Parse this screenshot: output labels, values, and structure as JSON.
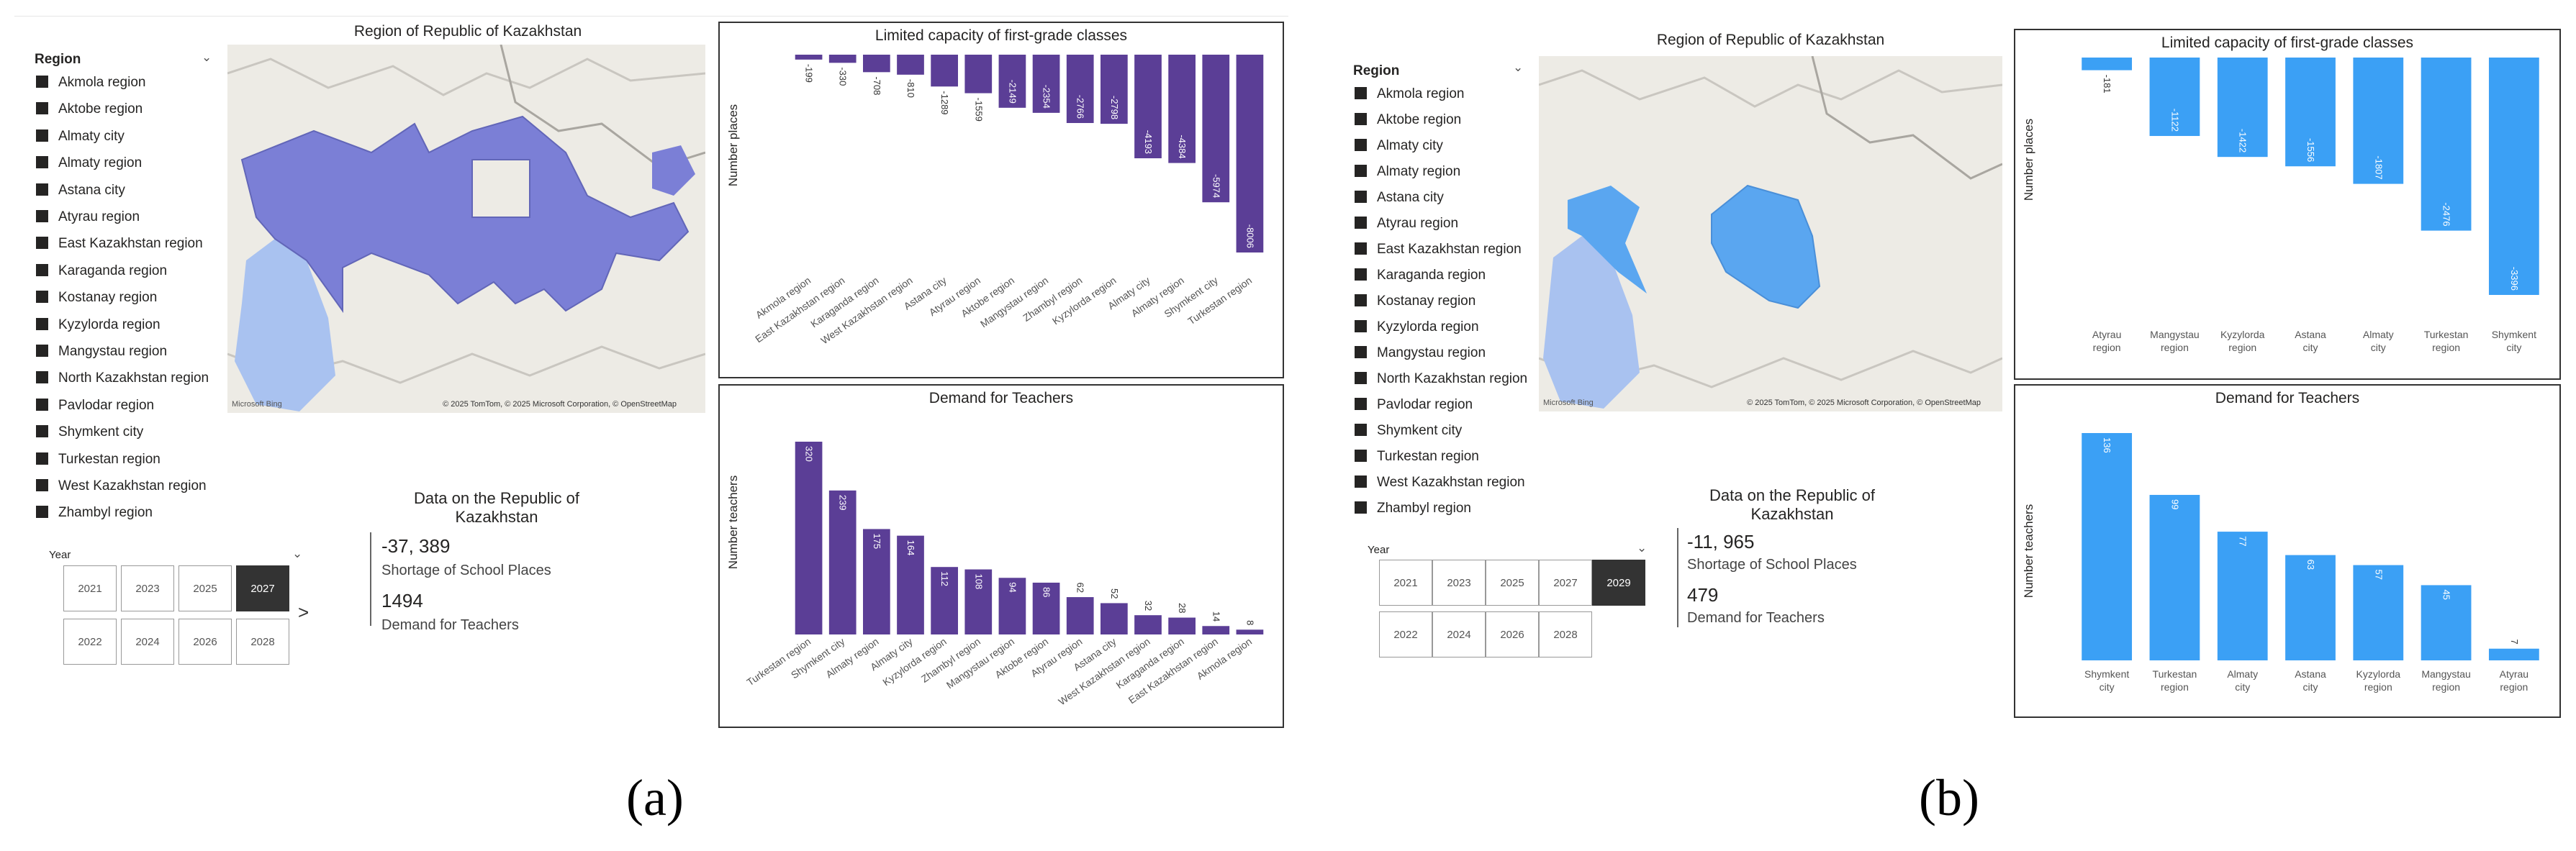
{
  "panels": [
    {
      "id": "a",
      "map_title": "Region of Republic of Kazakhstan",
      "map_credit": "© 2025 TomTom, © 2025 Microsoft Corporation, © OpenStreetMap",
      "map_logo": "Microsoft Bing",
      "legend_title": "Region",
      "legend_items": [
        "Akmola region",
        "Aktobe region",
        "Almaty city",
        "Almaty region",
        "Astana city",
        "Atyrau region",
        "East Kazakhstan region",
        "Karaganda region",
        "Kostanay region",
        "Kyzylorda region",
        "Mangystau region",
        "North Kazakhstan region",
        "Pavlodar region",
        "Shymkent city",
        "Turkestan region",
        "West Kazakhstan region",
        "Zhambyl region"
      ],
      "kpi_title": "Data on the Republic of Kazakhstan",
      "kpi_places_value": "-37, 389",
      "kpi_places_label": "Shortage of School Places",
      "kpi_teachers_value": "1494",
      "kpi_teachers_label": "Demand for Teachers",
      "year_label": "Year",
      "years": [
        "2021",
        "2023",
        "2025",
        "2027",
        "2022",
        "2024",
        "2026",
        "2028"
      ],
      "selected_year": "2027",
      "next_arrow": ">",
      "subfig_label": "(a)",
      "colors": {
        "bar": "#5b3e96",
        "map_fill": "#7b7fd6",
        "map_light": "#a9c2f0"
      },
      "chart_data": [
        {
          "type": "bar",
          "title": "Limited capacity of first-grade classes",
          "ylabel": "Number places",
          "xlabel": "",
          "categories": [
            "Akmola region",
            "East Kazakhstan region",
            "Karaganda region",
            "West Kazakhstan region",
            "Astana city",
            "Atyrau region",
            "Aktobe region",
            "Mangystau region",
            "Zhambyl region",
            "Kyzylorda region",
            "Almaty city",
            "Almaty region",
            "Shymkent city",
            "Turkestan region"
          ],
          "values": [
            -199,
            -330,
            -708,
            -810,
            -1289,
            -1559,
            -2149,
            -2354,
            -2766,
            -2798,
            -4193,
            -4384,
            -5974,
            -8006
          ],
          "ylim": [
            -8006,
            0
          ]
        },
        {
          "type": "bar",
          "title": "Demand for Teachers",
          "ylabel": "Number teachers",
          "xlabel": "",
          "categories": [
            "Turkestan region",
            "Shymkent city",
            "Almaty region",
            "Almaty city",
            "Kyzylorda region",
            "Zhambyl region",
            "Mangystau region",
            "Aktobe region",
            "Atyrau region",
            "Astana city",
            "West Kazakhstan region",
            "Karaganda region",
            "East Kazakhstan region",
            "Akmola region"
          ],
          "values": [
            320,
            239,
            175,
            164,
            112,
            108,
            94,
            86,
            62,
            52,
            32,
            28,
            14,
            8
          ],
          "ylim": [
            0,
            320
          ]
        }
      ]
    },
    {
      "id": "b",
      "map_title": "Region of Republic of Kazakhstan",
      "map_credit": "© 2025 TomTom, © 2025 Microsoft Corporation, © OpenStreetMap",
      "map_logo": "Microsoft Bing",
      "legend_title": "Region",
      "legend_items": [
        "Akmola region",
        "Aktobe region",
        "Almaty city",
        "Almaty region",
        "Astana city",
        "Atyrau region",
        "East Kazakhstan region",
        "Karaganda region",
        "Kostanay region",
        "Kyzylorda region",
        "Mangystau region",
        "North Kazakhstan region",
        "Pavlodar region",
        "Shymkent city",
        "Turkestan region",
        "West Kazakhstan region",
        "Zhambyl region"
      ],
      "kpi_title": "Data on the Republic of Kazakhstan",
      "kpi_places_value": "-11, 965",
      "kpi_places_label": "Shortage of School Places",
      "kpi_teachers_value": "479",
      "kpi_teachers_label": "Demand for Teachers",
      "year_label": "Year",
      "years": [
        "2021",
        "2023",
        "2025",
        "2027",
        "2029",
        "2022",
        "2024",
        "2026",
        "2028"
      ],
      "selected_year": "2029",
      "subfig_label": "(b)",
      "colors": {
        "bar": "#3ba0f5",
        "map_fill": "#5aa6f0",
        "map_light": "#a9c2f0"
      },
      "chart_data": [
        {
          "type": "bar",
          "title": "Limited capacity of first-grade classes",
          "ylabel": "Number places",
          "xlabel": "",
          "categories": [
            "Atyrau region",
            "Mangystau region",
            "Kyzylorda region",
            "Astana city",
            "Almaty city",
            "Turkestan region",
            "Shymkent city"
          ],
          "values": [
            -181,
            -1122,
            -1422,
            -1556,
            -1807,
            -2476,
            -3396
          ],
          "ylim": [
            -3396,
            0
          ]
        },
        {
          "type": "bar",
          "title": "Demand for Teachers",
          "ylabel": "Number teachers",
          "xlabel": "",
          "categories": [
            "Shymkent city",
            "Turkestan region",
            "Almaty city",
            "Astana city",
            "Kyzylorda region",
            "Mangystau region",
            "Atyrau region"
          ],
          "values": [
            136,
            99,
            77,
            63,
            57,
            45,
            7
          ],
          "ylim": [
            0,
            136
          ]
        }
      ]
    }
  ]
}
